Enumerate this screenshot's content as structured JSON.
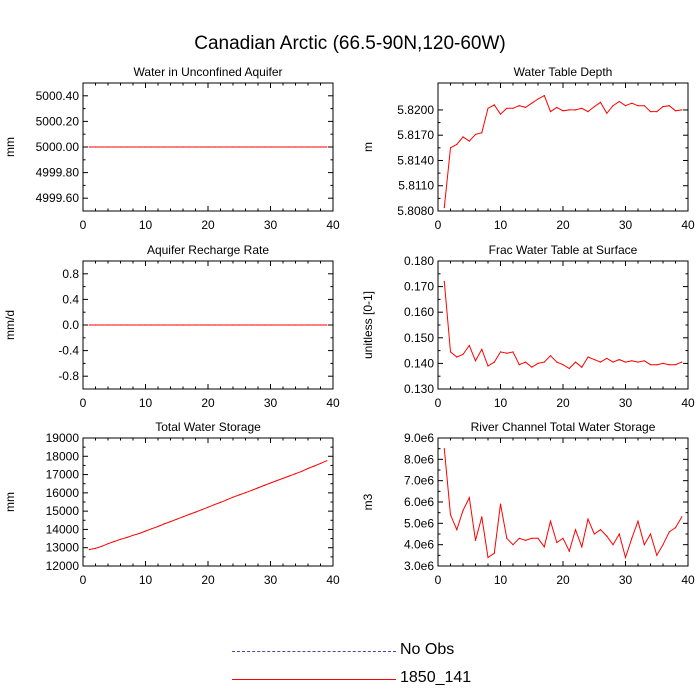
{
  "figure": {
    "title": "Canadian Arctic (66.5-90N,120-60W)"
  },
  "legend": [
    {
      "label": "No Obs",
      "color": "#4a4aa0",
      "style": "dashed"
    },
    {
      "label": "1850_141",
      "color": "#ff0000",
      "style": "solid"
    }
  ],
  "chart_data": [
    {
      "type": "line",
      "title": "Water in Unconfined Aquifer",
      "ylabel": "mm",
      "xlim": [
        0,
        40
      ],
      "ylim": [
        4999.5,
        5000.5
      ],
      "xticks": [
        0,
        10,
        20,
        30,
        40
      ],
      "yticks": [
        4999.6,
        4999.8,
        5000.0,
        5000.2,
        5000.4
      ],
      "ytick_labels": [
        "4999.60",
        "4999.80",
        "5000.00",
        "5000.20",
        "5000.40"
      ],
      "x": [
        1,
        2,
        3,
        4,
        5,
        6,
        7,
        8,
        9,
        10,
        11,
        12,
        13,
        14,
        15,
        16,
        17,
        18,
        19,
        20,
        21,
        22,
        23,
        24,
        25,
        26,
        27,
        28,
        29,
        30,
        31,
        32,
        33,
        34,
        35,
        36,
        37,
        38,
        39
      ],
      "series": [
        {
          "name": "1850_141",
          "values": [
            5000,
            5000,
            5000,
            5000,
            5000,
            5000,
            5000,
            5000,
            5000,
            5000,
            5000,
            5000,
            5000,
            5000,
            5000,
            5000,
            5000,
            5000,
            5000,
            5000,
            5000,
            5000,
            5000,
            5000,
            5000,
            5000,
            5000,
            5000,
            5000,
            5000,
            5000,
            5000,
            5000,
            5000,
            5000,
            5000,
            5000,
            5000,
            5000
          ]
        }
      ]
    },
    {
      "type": "line",
      "title": "Water Table Depth",
      "ylabel": "m",
      "xlim": [
        0,
        40
      ],
      "ylim": [
        5.808,
        5.8232
      ],
      "xticks": [
        0,
        10,
        20,
        30,
        40
      ],
      "yticks": [
        5.808,
        5.811,
        5.814,
        5.817,
        5.82
      ],
      "ytick_labels": [
        "5.8080",
        "5.8110",
        "5.8140",
        "5.8170",
        "5.8200"
      ],
      "x": [
        1,
        2,
        3,
        4,
        5,
        6,
        7,
        8,
        9,
        10,
        11,
        12,
        13,
        14,
        15,
        16,
        17,
        18,
        19,
        20,
        21,
        22,
        23,
        24,
        25,
        26,
        27,
        28,
        29,
        30,
        31,
        32,
        33,
        34,
        35,
        36,
        37,
        38,
        39
      ],
      "series": [
        {
          "name": "1850_141",
          "values": [
            5.8084,
            5.8155,
            5.8159,
            5.8168,
            5.8163,
            5.8171,
            5.8173,
            5.8202,
            5.8206,
            5.8195,
            5.8202,
            5.8202,
            5.8205,
            5.8203,
            5.8208,
            5.8213,
            5.8217,
            5.8198,
            5.8203,
            5.8199,
            5.82,
            5.82,
            5.8202,
            5.8198,
            5.8204,
            5.8209,
            5.8196,
            5.8205,
            5.821,
            5.8205,
            5.8208,
            5.8205,
            5.8205,
            5.8198,
            5.8198,
            5.8204,
            5.8205,
            5.8199,
            5.82
          ]
        }
      ]
    },
    {
      "type": "line",
      "title": "Aquifer Recharge Rate",
      "ylabel": "mm/d",
      "xlim": [
        0,
        40
      ],
      "ylim": [
        -1,
        1
      ],
      "xticks": [
        0,
        10,
        20,
        30,
        40
      ],
      "yticks": [
        -0.8,
        -0.4,
        0,
        0.4,
        0.8
      ],
      "ytick_labels": [
        "-0.8",
        "-0.4",
        "0.0",
        "0.4",
        "0.8"
      ],
      "x": [
        1,
        2,
        3,
        4,
        5,
        6,
        7,
        8,
        9,
        10,
        11,
        12,
        13,
        14,
        15,
        16,
        17,
        18,
        19,
        20,
        21,
        22,
        23,
        24,
        25,
        26,
        27,
        28,
        29,
        30,
        31,
        32,
        33,
        34,
        35,
        36,
        37,
        38,
        39
      ],
      "series": [
        {
          "name": "1850_141",
          "values": [
            0,
            0,
            0,
            0,
            0,
            0,
            0,
            0,
            0,
            0,
            0,
            0,
            0,
            0,
            0,
            0,
            0,
            0,
            0,
            0,
            0,
            0,
            0,
            0,
            0,
            0,
            0,
            0,
            0,
            0,
            0,
            0,
            0,
            0,
            0,
            0,
            0,
            0,
            0
          ]
        }
      ]
    },
    {
      "type": "line",
      "title": "Frac Water Table at Surface",
      "ylabel": "unitless [0-1]",
      "xlim": [
        0,
        40
      ],
      "ylim": [
        0.13,
        0.18
      ],
      "xticks": [
        0,
        10,
        20,
        30,
        40
      ],
      "yticks": [
        0.13,
        0.14,
        0.15,
        0.16,
        0.17,
        0.18
      ],
      "ytick_labels": [
        "0.130",
        "0.140",
        "0.150",
        "0.160",
        "0.170",
        "0.180"
      ],
      "x": [
        1,
        2,
        3,
        4,
        5,
        6,
        7,
        8,
        9,
        10,
        11,
        12,
        13,
        14,
        15,
        16,
        17,
        18,
        19,
        20,
        21,
        22,
        23,
        24,
        25,
        26,
        27,
        28,
        29,
        30,
        31,
        32,
        33,
        34,
        35,
        36,
        37,
        38,
        39
      ],
      "series": [
        {
          "name": "1850_141",
          "values": [
            0.172,
            0.1445,
            0.1425,
            0.1435,
            0.147,
            0.141,
            0.1455,
            0.139,
            0.1405,
            0.1445,
            0.144,
            0.1445,
            0.1395,
            0.1405,
            0.1385,
            0.14,
            0.1405,
            0.143,
            0.1405,
            0.1395,
            0.138,
            0.1405,
            0.1385,
            0.1425,
            0.1415,
            0.1405,
            0.142,
            0.1405,
            0.1415,
            0.1405,
            0.141,
            0.1405,
            0.141,
            0.1395,
            0.1395,
            0.14,
            0.1395,
            0.1395,
            0.1405
          ]
        }
      ]
    },
    {
      "type": "line",
      "title": "Total Water Storage",
      "ylabel": "mm",
      "xlim": [
        0,
        40
      ],
      "ylim": [
        12000,
        19000
      ],
      "xticks": [
        0,
        10,
        20,
        30,
        40
      ],
      "yticks": [
        12000,
        13000,
        14000,
        15000,
        16000,
        17000,
        18000,
        19000
      ],
      "ytick_labels": [
        "12000",
        "13000",
        "14000",
        "15000",
        "16000",
        "17000",
        "18000",
        "19000"
      ],
      "x": [
        1,
        2,
        3,
        4,
        5,
        6,
        7,
        8,
        9,
        10,
        11,
        12,
        13,
        14,
        15,
        16,
        17,
        18,
        19,
        20,
        21,
        22,
        23,
        24,
        25,
        26,
        27,
        28,
        29,
        30,
        31,
        32,
        33,
        34,
        35,
        36,
        37,
        38,
        39
      ],
      "series": [
        {
          "name": "1850_141",
          "values": [
            12900,
            12960,
            13080,
            13220,
            13340,
            13460,
            13560,
            13680,
            13780,
            13910,
            14040,
            14160,
            14300,
            14430,
            14560,
            14690,
            14820,
            14950,
            15080,
            15210,
            15350,
            15480,
            15620,
            15760,
            15890,
            16010,
            16140,
            16270,
            16410,
            16540,
            16670,
            16790,
            16920,
            17050,
            17180,
            17330,
            17470,
            17610,
            17760
          ]
        }
      ]
    },
    {
      "type": "line",
      "title": "River Channel Total Water Storage",
      "ylabel": "m3",
      "xlim": [
        0,
        40
      ],
      "ylim": [
        3000000,
        9000000
      ],
      "xticks": [
        0,
        10,
        20,
        30,
        40
      ],
      "yticks": [
        3000000,
        4000000,
        5000000,
        6000000,
        7000000,
        8000000,
        9000000
      ],
      "ytick_labels": [
        "3.0e6",
        "4.0e6",
        "5.0e6",
        "6.0e6",
        "7.0e6",
        "8.0e6",
        "9.0e6"
      ],
      "x": [
        1,
        2,
        3,
        4,
        5,
        6,
        7,
        8,
        9,
        10,
        11,
        12,
        13,
        14,
        15,
        16,
        17,
        18,
        19,
        20,
        21,
        22,
        23,
        24,
        25,
        26,
        27,
        28,
        29,
        30,
        31,
        32,
        33,
        34,
        35,
        36,
        37,
        38,
        39
      ],
      "series": [
        {
          "name": "1850_141",
          "values": [
            8500000,
            5400000,
            4700000,
            5600000,
            6200000,
            4200000,
            5300000,
            3400000,
            3600000,
            5900000,
            4300000,
            4000000,
            4300000,
            4200000,
            4300000,
            4300000,
            3900000,
            5100000,
            4100000,
            4300000,
            3700000,
            4700000,
            3900000,
            5200000,
            4500000,
            4700000,
            4400000,
            4000000,
            4500000,
            3400000,
            4300000,
            5100000,
            4000000,
            4500000,
            3500000,
            4000000,
            4600000,
            4800000,
            5300000
          ]
        }
      ]
    }
  ]
}
